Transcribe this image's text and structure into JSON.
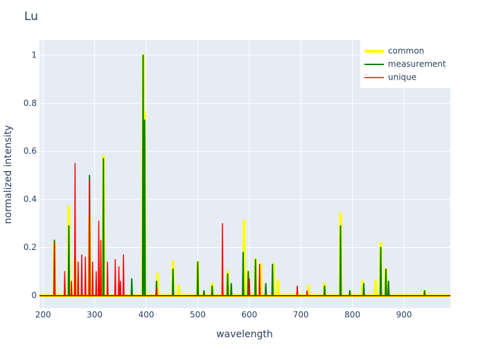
{
  "chart_data": {
    "type": "line",
    "title": "Lu",
    "xlabel": "wavelength",
    "ylabel": "normalized intensity",
    "xlim": [
      193,
      990
    ],
    "ylim": [
      -0.052,
      1.063
    ],
    "xticks": [
      200,
      300,
      400,
      500,
      600,
      700,
      800,
      900
    ],
    "yticks": [
      0,
      0.2,
      0.4,
      0.6,
      0.8,
      1
    ],
    "grid": true,
    "legend": "top-right",
    "series": [
      {
        "name": "common",
        "color": "#ffff00",
        "x": [
          193,
          221,
          222,
          223,
          249,
          250,
          251,
          261,
          262,
          263,
          289,
          290,
          291,
          316,
          317,
          318,
          393,
          394,
          395,
          396,
          397,
          398,
          421,
          422,
          423,
          451,
          452,
          453,
          462,
          463,
          464,
          499,
          500,
          501,
          527,
          528,
          529,
          557,
          558,
          559,
          589,
          590,
          591,
          597,
          598,
          599,
          611,
          612,
          613,
          621,
          622,
          623,
          646,
          647,
          648,
          655,
          656,
          657,
          714,
          715,
          716,
          745,
          746,
          747,
          776,
          777,
          778,
          819,
          820,
          821,
          844,
          845,
          846,
          854,
          855,
          856,
          864,
          865,
          866,
          939,
          940,
          941,
          990
        ],
        "values": [
          0,
          0,
          0.22,
          0,
          0,
          0.37,
          0,
          0,
          0.15,
          0,
          0,
          0.33,
          0,
          0,
          0.58,
          0,
          0,
          1,
          0,
          0,
          0.76,
          0,
          0,
          0.09,
          0,
          0,
          0.14,
          0,
          0,
          0.04,
          0,
          0,
          0.14,
          0,
          0,
          0.05,
          0,
          0,
          0.1,
          0,
          0,
          0.31,
          0,
          0,
          0.1,
          0,
          0,
          0.15,
          0,
          0,
          0.13,
          0,
          0,
          0.13,
          0,
          0,
          0.06,
          0,
          0,
          0.04,
          0,
          0,
          0.05,
          0,
          0,
          0.34,
          0,
          0,
          0.06,
          0,
          0,
          0.06,
          0,
          0,
          0.22,
          0,
          0,
          0.11,
          0,
          0,
          0.02,
          0,
          0
        ]
      },
      {
        "name": "measurement",
        "color": "#008000",
        "x": [
          193,
          221,
          222,
          223,
          249,
          250,
          251,
          289,
          290,
          291,
          316,
          317,
          318,
          371,
          372,
          373,
          393,
          394,
          395,
          396,
          397,
          398,
          419,
          420,
          421,
          451,
          452,
          453,
          499,
          500,
          501,
          511,
          512,
          513,
          527,
          528,
          529,
          557,
          558,
          559,
          564,
          565,
          566,
          587,
          588,
          589,
          597,
          598,
          599,
          611,
          612,
          613,
          631,
          632,
          633,
          644,
          645,
          646,
          745,
          746,
          747,
          776,
          777,
          778,
          794,
          795,
          796,
          821,
          822,
          823,
          854,
          855,
          856,
          864,
          865,
          866,
          869,
          870,
          871,
          939,
          940,
          941,
          990
        ],
        "values": [
          0,
          0,
          0.23,
          0,
          0,
          0.29,
          0,
          0,
          0.5,
          0,
          0,
          0.57,
          0,
          0,
          0.07,
          0,
          0,
          1,
          0,
          0,
          0.73,
          0,
          0,
          0.06,
          0,
          0,
          0.11,
          0,
          0,
          0.14,
          0,
          0,
          0.02,
          0,
          0,
          0.04,
          0,
          0,
          0.09,
          0,
          0,
          0.05,
          0,
          0,
          0.18,
          0,
          0,
          0.1,
          0,
          0,
          0.15,
          0,
          0,
          0.05,
          0,
          0,
          0.13,
          0,
          0,
          0.04,
          0,
          0,
          0.29,
          0,
          0,
          0.02,
          0,
          0,
          0.05,
          0,
          0,
          0.2,
          0,
          0,
          0.11,
          0,
          0,
          0.06,
          0,
          0,
          0.02,
          0,
          0
        ]
      },
      {
        "name": "unique",
        "color": "#ff0000",
        "x": [
          193,
          221,
          222,
          223,
          241,
          242,
          243,
          254,
          255,
          256,
          261,
          262,
          263,
          267,
          268,
          269,
          274,
          275,
          276,
          281,
          282,
          283,
          289,
          290,
          291,
          295,
          296,
          297,
          302,
          303,
          304,
          307,
          308,
          309,
          311,
          312,
          313,
          324,
          325,
          326,
          339,
          340,
          341,
          346,
          347,
          348,
          349,
          350,
          351,
          355,
          356,
          357,
          419,
          420,
          421,
          547,
          548,
          549,
          599,
          600,
          601,
          619,
          620,
          621,
          692,
          693,
          694,
          711,
          712,
          713,
          990
        ],
        "values": [
          0,
          0,
          0.22,
          0,
          0,
          0.1,
          0,
          0,
          0.06,
          0,
          0,
          0.55,
          0,
          0,
          0.14,
          0,
          0,
          0.17,
          0,
          0,
          0.16,
          0,
          0,
          0.48,
          0,
          0,
          0.14,
          0,
          0,
          0.1,
          0,
          0,
          0.31,
          0,
          0,
          0.23,
          0,
          0,
          0.14,
          0,
          0,
          0.15,
          0,
          0,
          0.12,
          0,
          0,
          0.06,
          0,
          0,
          0.17,
          0,
          0,
          0.03,
          0,
          0,
          0.3,
          0,
          0,
          0.07,
          0,
          0,
          0.13,
          0,
          0,
          0.04,
          0,
          0,
          0.02,
          0,
          0
        ]
      }
    ]
  }
}
